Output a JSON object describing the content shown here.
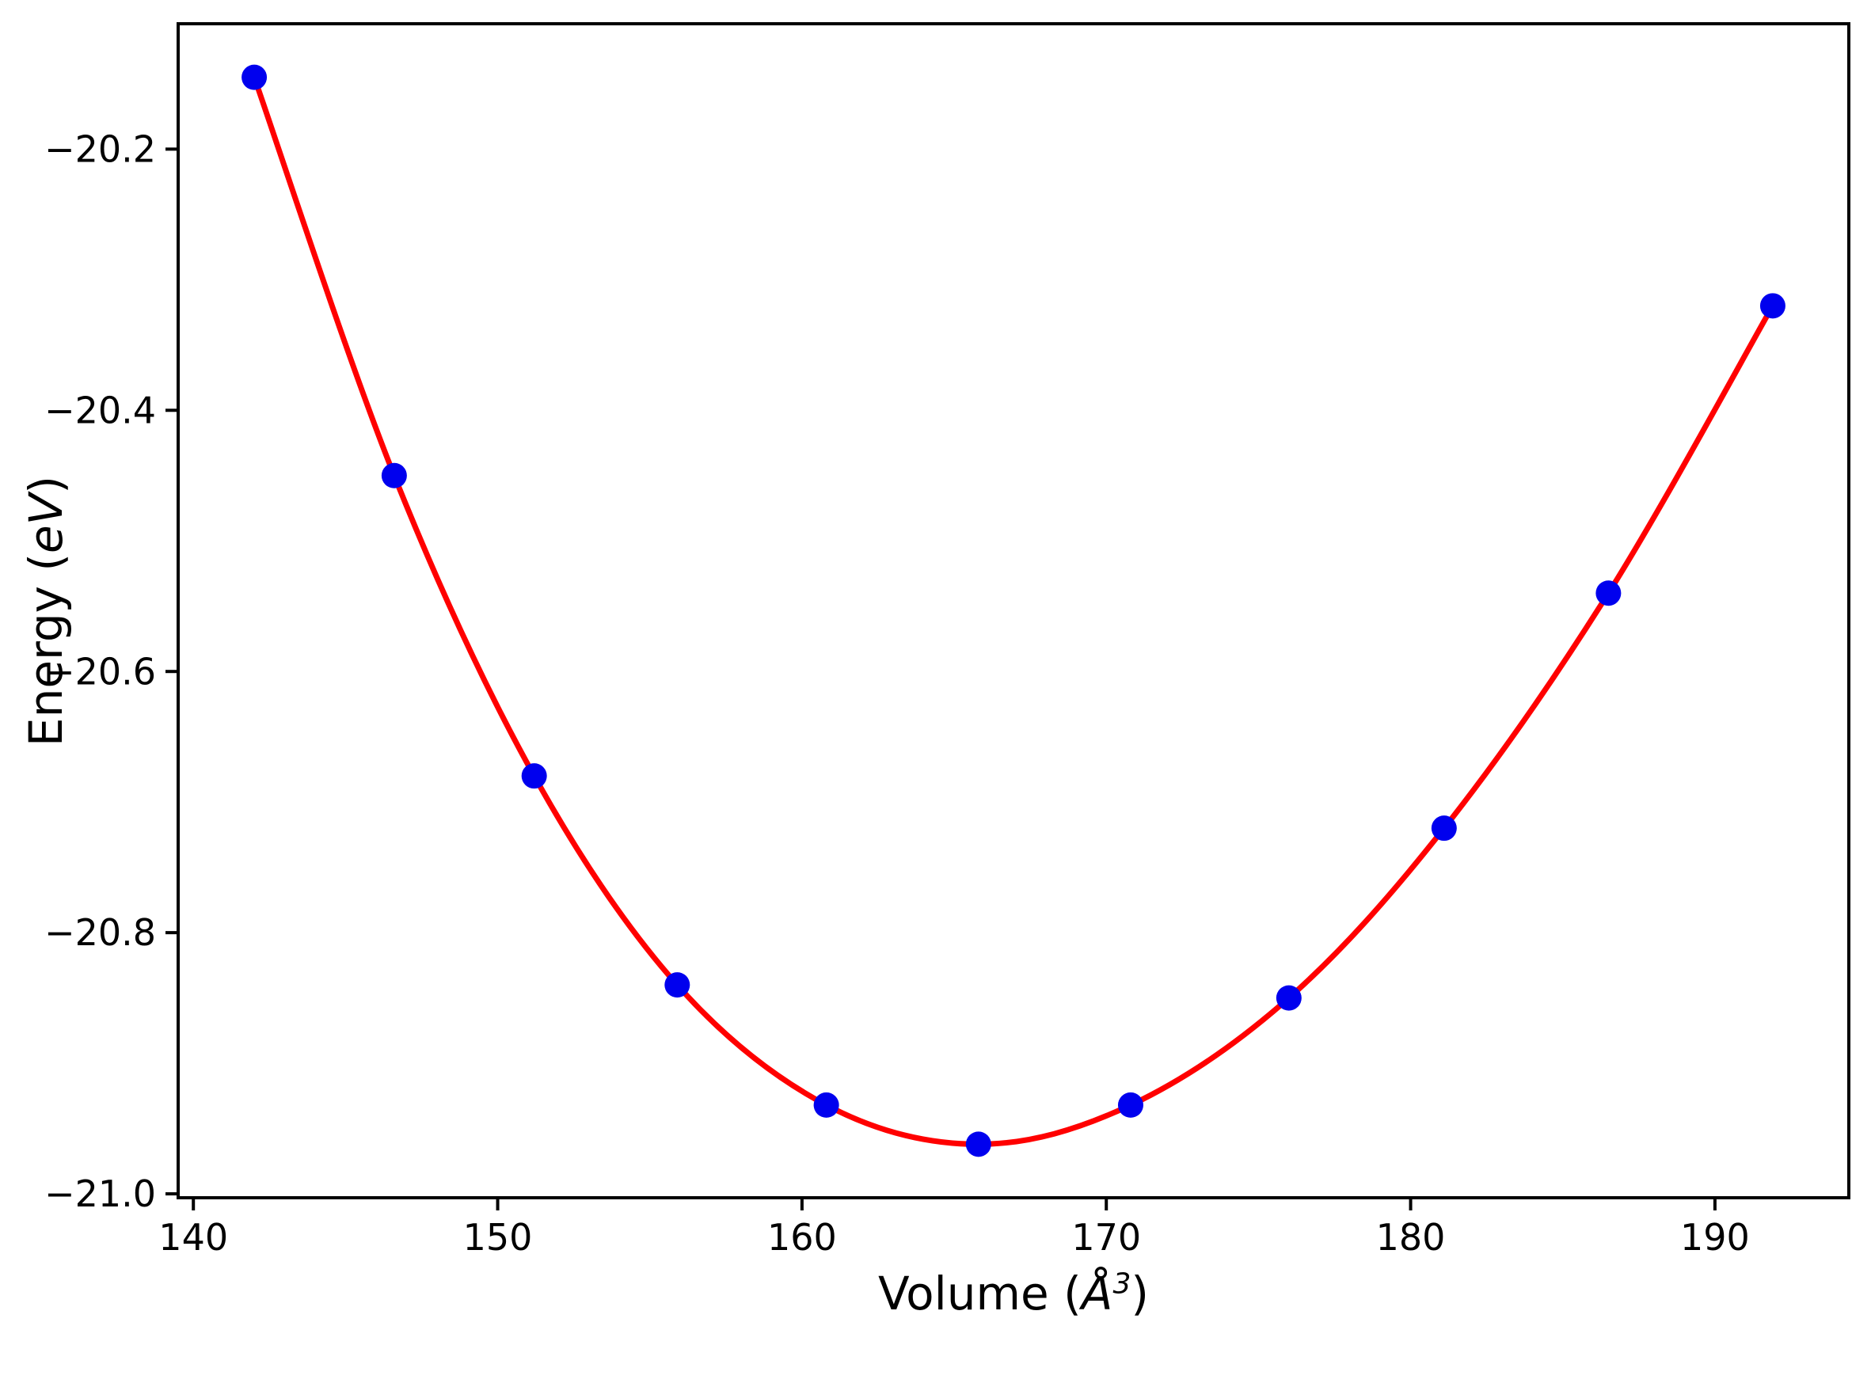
{
  "figure": {
    "background": "#ffffff"
  },
  "chart_data": {
    "type": "scatter",
    "title": "",
    "xlabel": "Volume (Å³)",
    "ylabel": "Energy (eV)",
    "xlabel_parts": [
      "Volume (",
      "Å",
      "3",
      ")"
    ],
    "ylabel_parts": [
      "Energy (",
      "eV",
      ")"
    ],
    "xlim": [
      139.5,
      194.4
    ],
    "ylim": [
      -21.003,
      -20.104
    ],
    "grid": false,
    "legend": null,
    "axis_color": "#000000",
    "xtick_values": [
      140,
      150,
      160,
      170,
      180,
      190
    ],
    "xtick_labels": [
      "140",
      "150",
      "160",
      "170",
      "180",
      "190"
    ],
    "ytick_values": [
      -20.2,
      -20.4,
      -20.6,
      -20.8,
      -21.0
    ],
    "ytick_labels": [
      "−20.2",
      "−20.4",
      "−20.6",
      "−20.8",
      "−21.0"
    ],
    "series": [
      {
        "name": "dft-data-points",
        "type": "scatter",
        "marker": "circle",
        "color": "#0000ee",
        "x": [
          142.0,
          146.6,
          151.2,
          155.9,
          160.8,
          165.8,
          170.8,
          176.0,
          181.1,
          186.5,
          191.9
        ],
        "y": [
          -20.145,
          -20.45,
          -20.68,
          -20.84,
          -20.932,
          -20.962,
          -20.932,
          -20.85,
          -20.72,
          -20.54,
          -20.32
        ]
      },
      {
        "name": "eos-fit-curve",
        "type": "line",
        "color": "#ff0000",
        "through_series": "dft-data-points"
      }
    ]
  }
}
